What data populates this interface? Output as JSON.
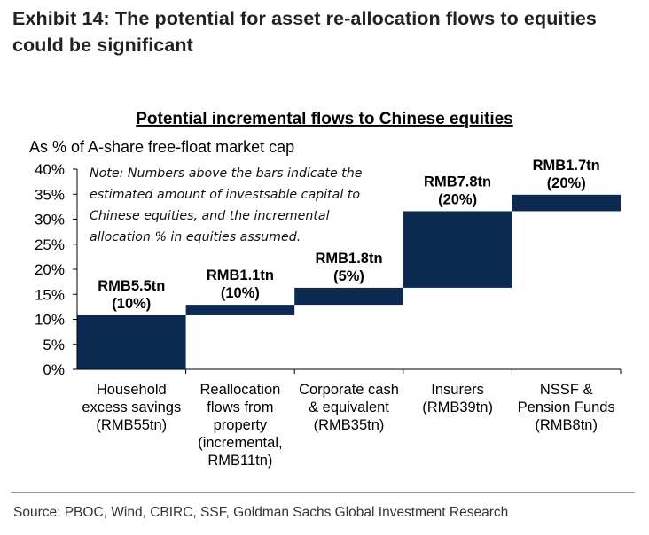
{
  "exhibit": {
    "title_line1": "Exhibit 14: The potential for asset re-allocation flows to equities",
    "title_line2": "could be significant"
  },
  "note": {
    "lines": [
      "Note: Numbers above the bars indicate the",
      "estimated amount of investsable capital to",
      "Chinese equities, and the incremental",
      "allocation % in equities assumed."
    ]
  },
  "source": "Source: PBOC, Wind, CBIRC, SSF, Goldman Sachs Global Investment Research",
  "chart_data": {
    "type": "bar",
    "subtype": "waterfall",
    "title": "Potential incremental flows to Chinese equities",
    "ylabel": "As % of A-share free-float market cap",
    "ylim": [
      0,
      40
    ],
    "ytick_labels": [
      "0%",
      "5%",
      "10%",
      "15%",
      "20%",
      "25%",
      "30%",
      "35%",
      "40%"
    ],
    "grid": false,
    "bar_color": "#0d2a52",
    "categories": [
      [
        "Household",
        "excess savings",
        "(RMB55tn)"
      ],
      [
        "Reallocation",
        "flows from",
        "property",
        "(incremental,",
        "RMB11tn)"
      ],
      [
        "Corporate cash",
        "& equivalent",
        "(RMB35tn)"
      ],
      [
        "Insurers",
        "(RMB39tn)"
      ],
      [
        "NSSF &",
        "Pension Funds",
        "(RMB8tn)"
      ]
    ],
    "bars": [
      {
        "start": 0.0,
        "end": 10.8,
        "label": [
          "RMB5.5tn",
          "(10%)"
        ]
      },
      {
        "start": 10.8,
        "end": 12.9,
        "label": [
          "RMB1.1tn",
          "(10%)"
        ]
      },
      {
        "start": 12.9,
        "end": 16.3,
        "label": [
          "RMB1.8tn",
          "(5%)"
        ]
      },
      {
        "start": 16.3,
        "end": 31.6,
        "label": [
          "RMB7.8tn",
          "(20%)"
        ]
      },
      {
        "start": 31.6,
        "end": 34.9,
        "label": [
          "RMB1.7tn",
          "(20%)"
        ]
      }
    ]
  }
}
